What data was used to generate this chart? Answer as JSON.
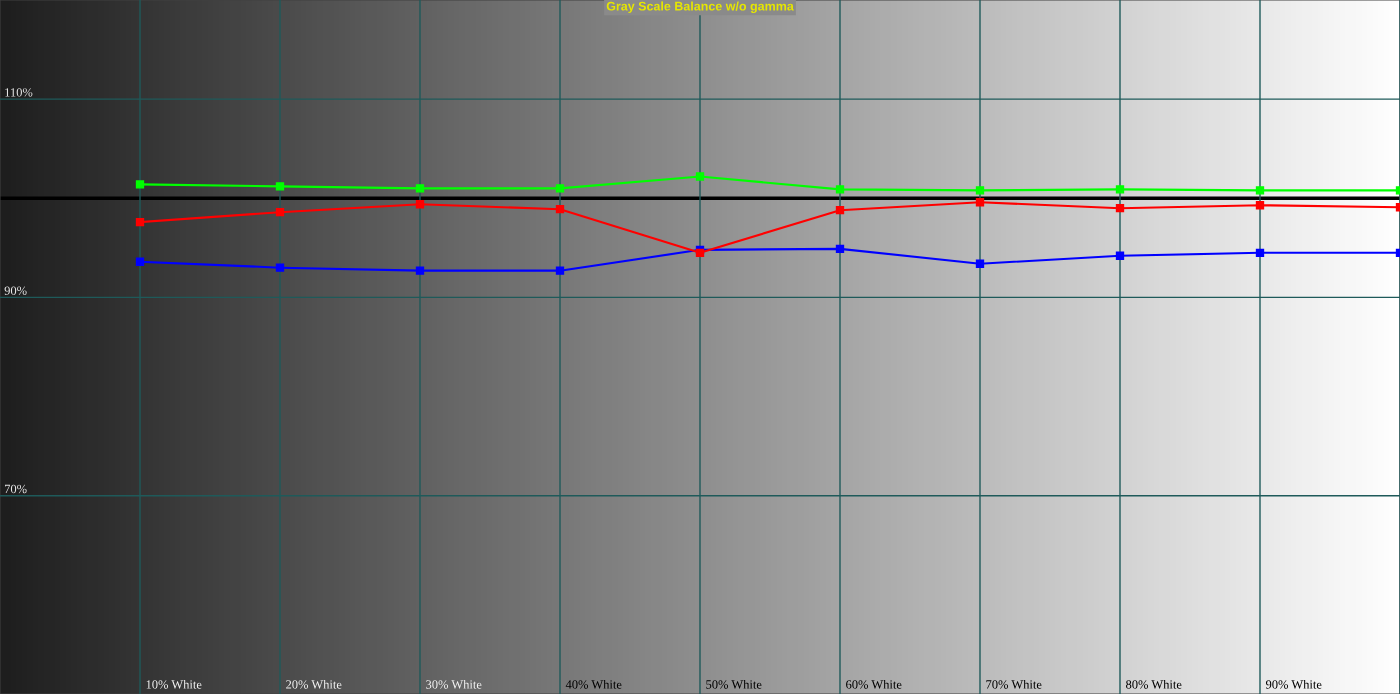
{
  "chart_data": {
    "type": "line",
    "title": "Gray Scale Balance w/o gamma",
    "categories": [
      "10% White",
      "20% White",
      "30% White",
      "40% White",
      "50% White",
      "60% White",
      "70% White",
      "80% White",
      "90% White",
      null
    ],
    "series": [
      {
        "color": "#00ff00",
        "values": [
          101.4,
          101.2,
          101.0,
          101.0,
          102.2,
          100.9,
          100.8,
          100.9,
          100.8,
          100.8
        ]
      },
      {
        "color": "#ff0000",
        "values": [
          97.6,
          98.6,
          99.4,
          98.9,
          94.5,
          98.8,
          99.6,
          99.0,
          99.3,
          99.1
        ]
      },
      {
        "color": "#0000ff",
        "values": [
          93.6,
          93.0,
          92.7,
          92.7,
          94.8,
          94.9,
          93.4,
          94.2,
          94.5,
          94.5
        ]
      }
    ],
    "ylim": [
      50,
      120
    ],
    "yticks": [
      {
        "value": 70,
        "label": "70%"
      },
      {
        "value": 90,
        "label": "90%"
      },
      {
        "value": 110,
        "label": "110%"
      }
    ],
    "ref_lines": [
      {
        "axis": "y",
        "value": 100,
        "color": "#000000"
      }
    ],
    "grid": true,
    "marker": "square",
    "line_style": "solid",
    "legend": false
  }
}
